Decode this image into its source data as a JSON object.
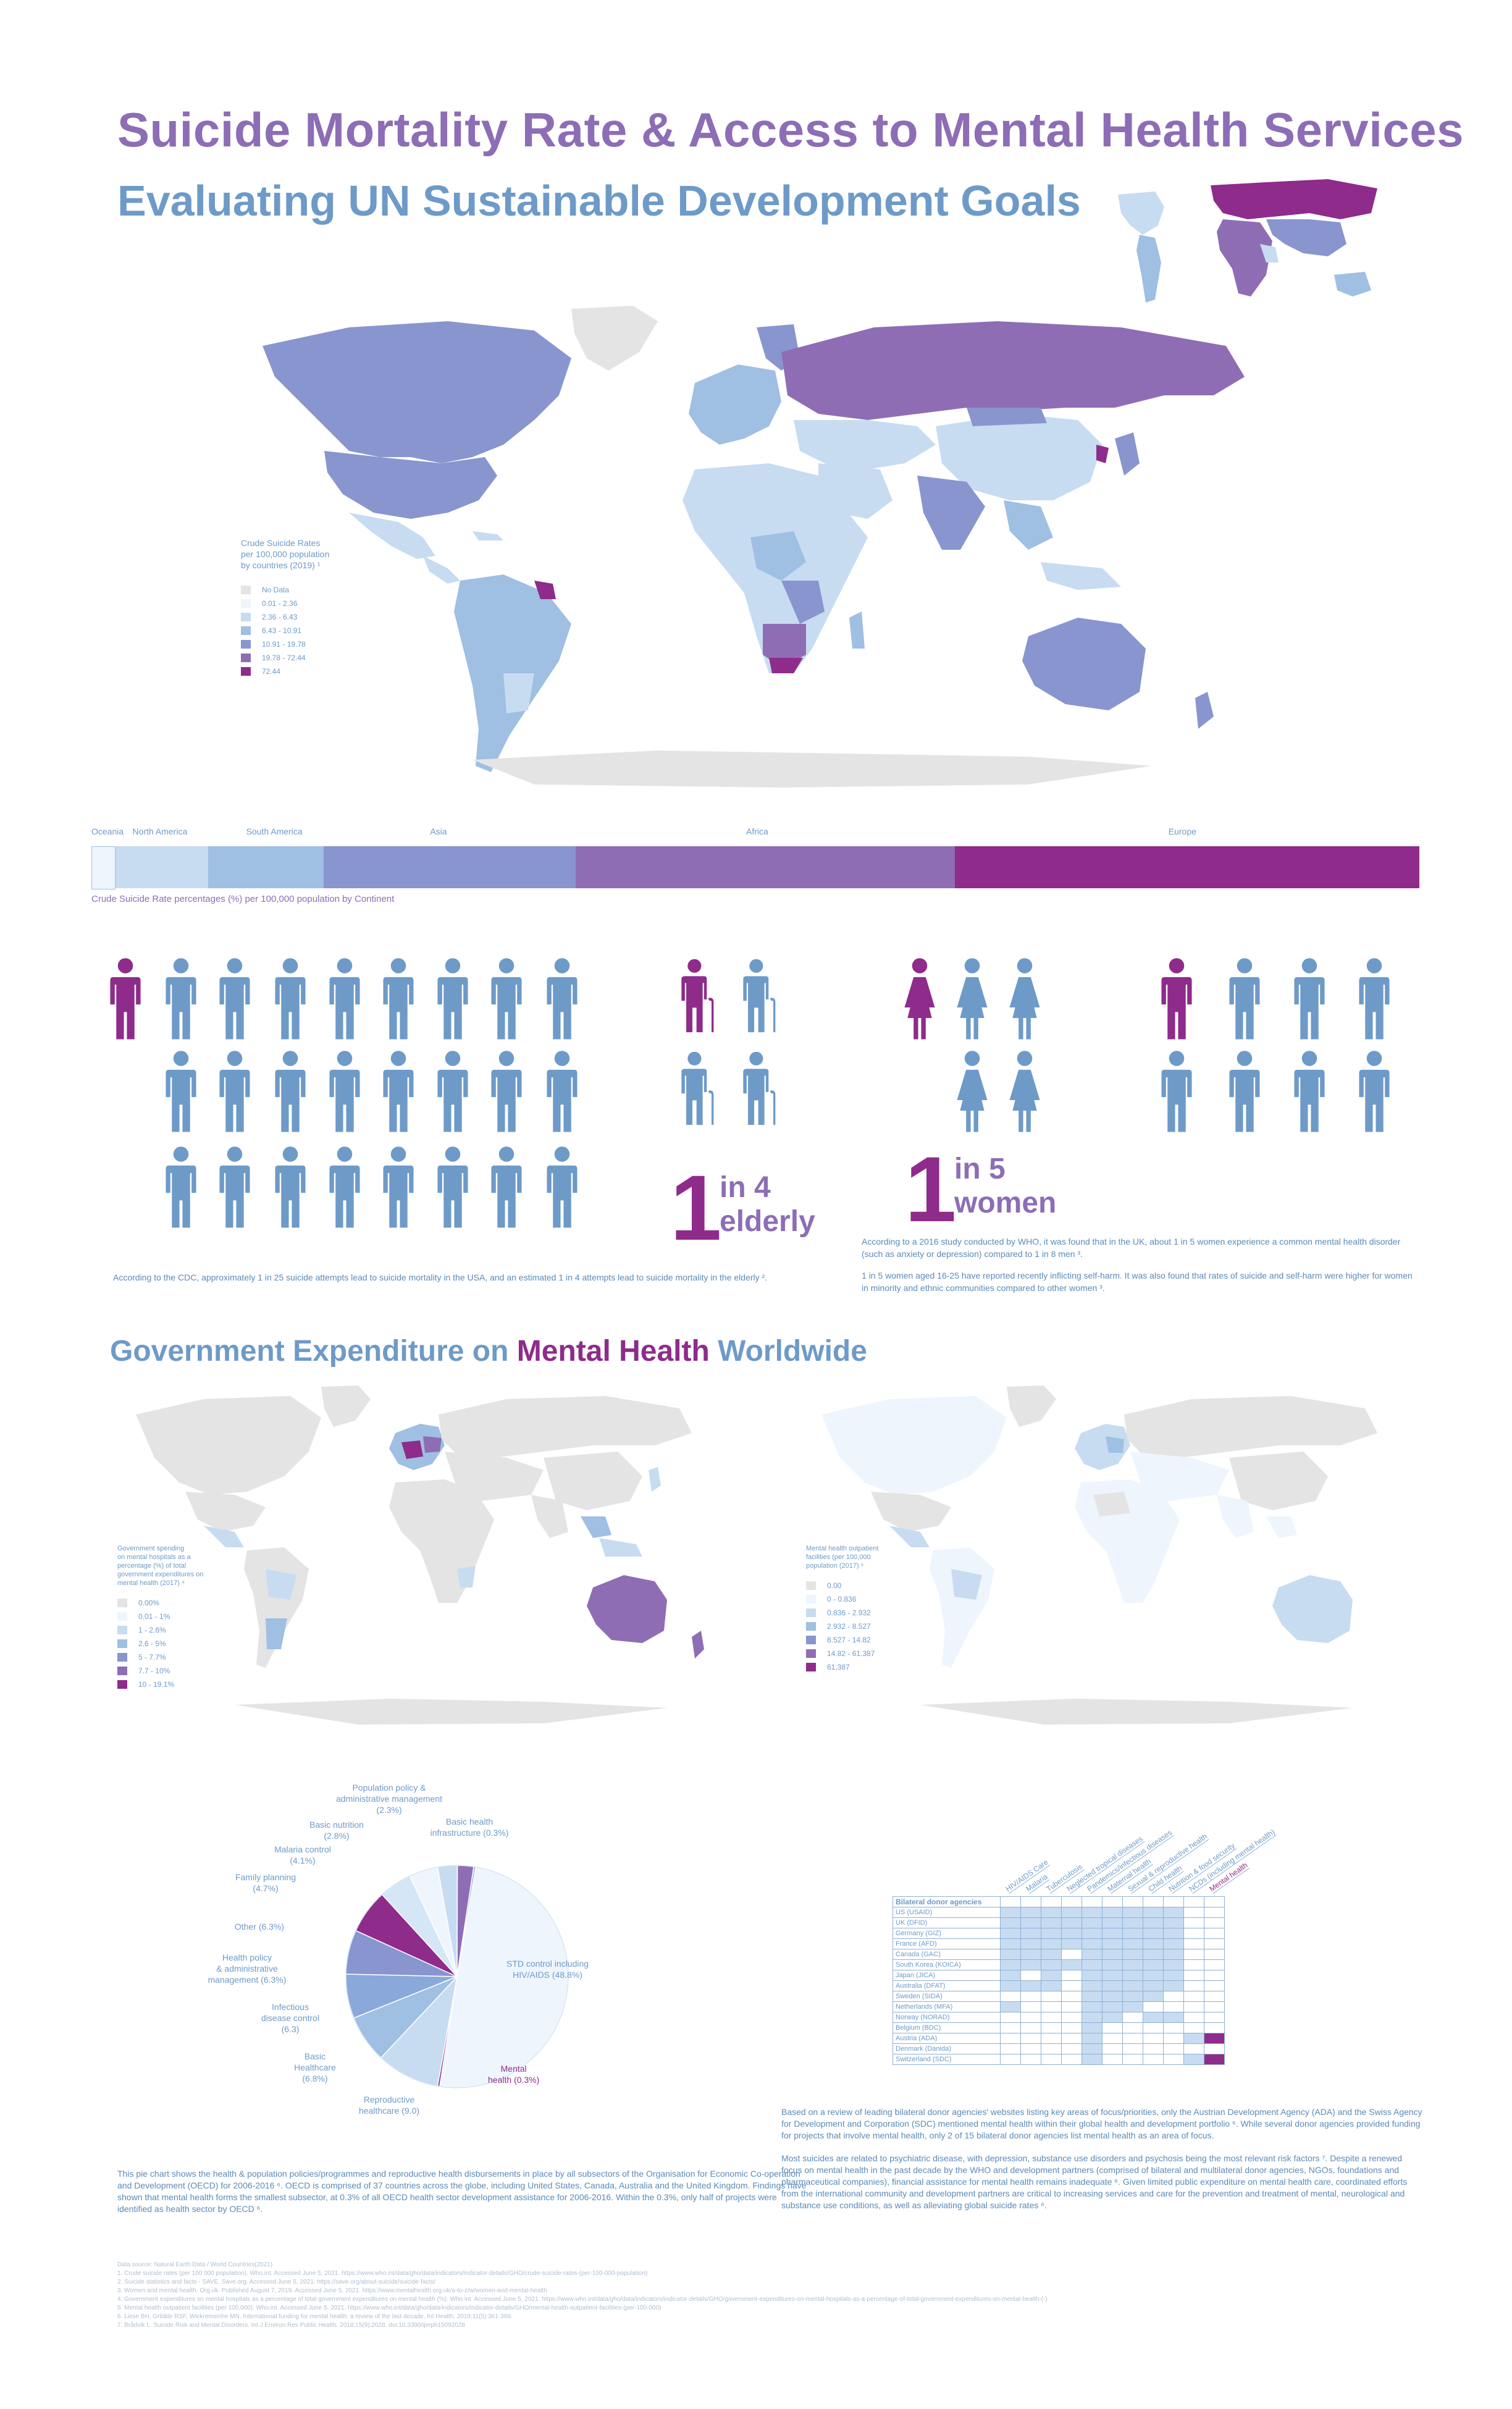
{
  "header": {
    "title": "Suicide Mortality Rate & Access to Mental Health Services",
    "subtitle": "Evaluating UN Sustainable Development Goals"
  },
  "map1_legend": {
    "title_line1": "Crude Suicide Rates",
    "title_line2": "per 100,000 population",
    "title_line3": "by countries (2019) ¹",
    "items": [
      {
        "label": "No Data",
        "color": "#e4e4e4"
      },
      {
        "label": "0.01 - 2.36",
        "color": "#eef5fc"
      },
      {
        "label": "2.36 - 6.43",
        "color": "#c7dcf1"
      },
      {
        "label": "6.43 - 10.91",
        "color": "#9fbfe3"
      },
      {
        "label": "10.91 - 19.78",
        "color": "#8895cf"
      },
      {
        "label": "19.78 - 72.44",
        "color": "#8f6db5"
      },
      {
        "label": "72.44",
        "color": "#8e2b8b"
      }
    ]
  },
  "continent_bar": {
    "caption": "Crude Suicide Rate percentages (%) per 100,000 population by Continent",
    "segments": [
      {
        "label": "Oceania",
        "share": 1.7,
        "color": "#eef5fc"
      },
      {
        "label": "North America",
        "share": 7.0,
        "color": "#c7dcf1"
      },
      {
        "label": "South America",
        "share": 8.7,
        "color": "#9fbfe3"
      },
      {
        "label": "Asia",
        "share": 19.0,
        "color": "#8895cf"
      },
      {
        "label": "Africa",
        "share": 28.6,
        "color": "#8f6db5"
      },
      {
        "label": "Europe",
        "share": 35.0,
        "color": "#8e2b8b"
      }
    ]
  },
  "stats": {
    "elderly_number": "1",
    "elderly_line1": "in 4",
    "elderly_line2": "elderly",
    "women_number": "1",
    "women_line1": "in 5",
    "women_line2": "women",
    "cdc_note": "According to the CDC, approximately 1 in 25 suicide attempts lead to suicide mortality in the USA, and an estimated 1 in 4 attempts lead to suicide mortality in the elderly ².",
    "who_note1": "According to a 2016 study conducted by WHO, it was found that in the UK, about 1 in 5 women experience a common mental health disorder (such as anxiety or depression) compared to 1 in 8 men ³.",
    "who_note2": "1 in 5 women aged 16-25 have reported recently inflicting self-harm. It was also found that rates of suicide and self-harm were higher for women in minority and ethnic communities compared to other women ³."
  },
  "section2": {
    "title_pre": "Government Expenditure on ",
    "title_hl": "Mental Health",
    "title_post": " Worldwide"
  },
  "map2_legend": {
    "title_line1": "Government spending",
    "title_line2": "on mental hospitals as a",
    "title_line3": "percentage (%) of total",
    "title_line4": "government expenditures on",
    "title_line5": "mental health (2017) ⁴",
    "items": [
      {
        "label": "0.00%",
        "color": "#e4e4e4"
      },
      {
        "label": "0.01 - 1%",
        "color": "#eef5fc"
      },
      {
        "label": "1 - 2.6%",
        "color": "#c7dcf1"
      },
      {
        "label": "2.6 - 5%",
        "color": "#9fbfe3"
      },
      {
        "label": "5 - 7.7%",
        "color": "#8895cf"
      },
      {
        "label": "7.7 - 10%",
        "color": "#8f6db5"
      },
      {
        "label": "10 - 19.1%",
        "color": "#8e2b8b"
      }
    ]
  },
  "map3_legend": {
    "title_line1": "Mental health outpatient",
    "title_line2": "facilities (per 100,000",
    "title_line3": "population (2017) ⁵",
    "items": [
      {
        "label": "0.00",
        "color": "#e4e4e4"
      },
      {
        "label": "0 - 0.836",
        "color": "#eef5fc"
      },
      {
        "label": "0.836 - 2.932",
        "color": "#c7dcf1"
      },
      {
        "label": "2.932 - 8.527",
        "color": "#9fbfe3"
      },
      {
        "label": "8.527 - 14.82",
        "color": "#8895cf"
      },
      {
        "label": "14.82 - 61.387",
        "color": "#8f6db5"
      },
      {
        "label": "61.387",
        "color": "#8e2b8b"
      }
    ]
  },
  "pie": {
    "slices": [
      {
        "label": "STD control including HIV/AIDS (48.8%)",
        "value": 48.8,
        "color": "#eef5fc"
      },
      {
        "label": "Mental health (0.3%)",
        "value": 0.3,
        "color": "#8e2b8b"
      },
      {
        "label": "Reproductive healthcare (9.0)",
        "value": 9.0,
        "color": "#c7dcf1"
      },
      {
        "label": "Basic Healthcare (6.8%)",
        "value": 6.8,
        "color": "#9fbfe3"
      },
      {
        "label": "Infectious disease control (6.3)",
        "value": 6.3,
        "color": "#8aa9da"
      },
      {
        "label": "Health policy & administrative management (6.3%)",
        "value": 6.3,
        "color": "#8895cf"
      },
      {
        "label": "Other (6.3%)",
        "value": 6.3,
        "color": "#8e2b8b"
      },
      {
        "label": "Family planning (4.7%)",
        "value": 4.7,
        "color": "#d5e6f6"
      },
      {
        "label": "Malaria control (4.1%)",
        "value": 4.1,
        "color": "#eef5fc"
      },
      {
        "label": "Basic nutrition (2.8%)",
        "value": 2.8,
        "color": "#c7dcf1"
      },
      {
        "label": "Population policy & administrative management (2.3%)",
        "value": 2.3,
        "color": "#8f6db5"
      },
      {
        "label": "Basic health infrastructure (0.3%)",
        "value": 0.3,
        "color": "#9fbfe3"
      }
    ],
    "note": "This pie chart shows the health & population policies/programmes and reproductive health disbursements in place by all subsectors of the Organisation for Economic Co-operation and Development (OECD) for 2006-2016 ⁶. OECD is comprised of 37 countries across the globe, including United States, Canada, Australia and the United Kingdom. Findings have shown that mental health forms the smallest subsector, at 0.3% of all OECD health sector development assistance for 2006-2016. Within the 0.3%, only half of projects were identified as health sector by OECD ⁶."
  },
  "donor_table": {
    "header": "Bilateral donor agencies",
    "columns": [
      "HIV/AIDS Care",
      "Malaria",
      "Tuberculosis",
      "Neglected tropical diseases",
      "Pandemics/infectious diseases",
      "Maternal health",
      "Sexual & reproductive health",
      "Child health",
      "Nutrition & food security",
      "NCDs (including mental health)",
      "Mental health"
    ],
    "rows": [
      {
        "agency": "US (USAID)",
        "cells": [
          1,
          1,
          1,
          1,
          1,
          1,
          1,
          1,
          1,
          0,
          0
        ]
      },
      {
        "agency": "UK (DFID)",
        "cells": [
          1,
          1,
          1,
          1,
          1,
          1,
          1,
          1,
          1,
          0,
          0
        ]
      },
      {
        "agency": "Germany (GIZ)",
        "cells": [
          1,
          1,
          1,
          1,
          1,
          1,
          1,
          1,
          1,
          0,
          0
        ]
      },
      {
        "agency": "France (AFD)",
        "cells": [
          1,
          1,
          1,
          1,
          1,
          1,
          1,
          1,
          1,
          0,
          0
        ]
      },
      {
        "agency": "Canada (GAC)",
        "cells": [
          1,
          1,
          1,
          0,
          1,
          1,
          1,
          1,
          1,
          0,
          0
        ]
      },
      {
        "agency": "South Korea (KOICA)",
        "cells": [
          1,
          1,
          1,
          1,
          1,
          1,
          1,
          1,
          1,
          0,
          0
        ]
      },
      {
        "agency": "Japan (JICA)",
        "cells": [
          1,
          0,
          1,
          0,
          1,
          1,
          1,
          1,
          1,
          0,
          0
        ]
      },
      {
        "agency": "Australia (DFAT)",
        "cells": [
          1,
          1,
          1,
          0,
          1,
          1,
          1,
          1,
          1,
          0,
          0
        ]
      },
      {
        "agency": "Sweden (SIDA)",
        "cells": [
          0,
          0,
          0,
          0,
          1,
          1,
          1,
          1,
          0,
          0,
          0
        ]
      },
      {
        "agency": "Netherlands (MFA)",
        "cells": [
          1,
          0,
          0,
          0,
          1,
          1,
          1,
          0,
          0,
          0,
          0
        ]
      },
      {
        "agency": "Norway (NORAD)",
        "cells": [
          0,
          0,
          0,
          0,
          1,
          1,
          0,
          1,
          1,
          0,
          0
        ]
      },
      {
        "agency": "Belgium (BDC)",
        "cells": [
          0,
          0,
          0,
          0,
          1,
          0,
          0,
          0,
          0,
          0,
          0
        ]
      },
      {
        "agency": "Austria (ADA)",
        "cells": [
          0,
          0,
          0,
          0,
          1,
          0,
          0,
          0,
          0,
          1,
          2
        ]
      },
      {
        "agency": "Denmark (Danida)",
        "cells": [
          0,
          0,
          0,
          0,
          1,
          0,
          0,
          0,
          0,
          0,
          0
        ]
      },
      {
        "agency": "Switzerland (SDC)",
        "cells": [
          0,
          0,
          0,
          0,
          1,
          0,
          0,
          0,
          0,
          1,
          2
        ]
      }
    ],
    "para1": "Based on a review of leading bilateral donor agencies' websites listing key areas of focus/priorities, only the Austrian Development Agency (ADA) and the Swiss Agency for Development and Corporation (SDC) mentioned mental health within their global health and development portfolio ⁶. While several donor agencies provided funding for projects that involve mental health, only 2 of 15 bilateral donor agencies list mental health as an area of focus.",
    "para2": "Most suicides are related to psychiatric disease, with depression, substance use disorders and psychosis being the most relevant risk factors ⁷. Despite a renewed focus on mental health in the past decade by the WHO and development partners (comprised of bilateral and multilateral donor agencies, NGOs, foundations and pharmaceutical companies), financial assistance for mental health remains inadequate ⁶. Given limited public expenditure on mental health care, coordinated efforts from the international community and development partners are critical to increasing services and care for the prevention and treatment of mental, neurological and substance use conditions, as well as alleviating global suicide rates ⁶."
  },
  "sources": [
    "Data source: Natural Earth Data / World Countries(2021)",
    "1. Crude suicide rates (per 100 000 population). Who.int. Accessed June 5, 2021. https://www.who.int/data/gho/data/indicators/indicator-details/GHO/crude-suicide-rates-(per-100-000-population)",
    "2. Suicide statistics and facts - SAVE. Save.org. Accessed June 5, 2021. https://save.org/about-suicide/suicide-facts/",
    "3. Women and mental health. Org.uk. Published August 7, 2019. Accessed June 5, 2021. https://www.mentalhealth.org.uk/a-to-z/w/women-and-mental-health",
    "4. Government expenditures on mental hospitals as a percentage of total government expenditures on mental health (%). Who.int. Accessed June 5, 2021. https://www.who.int/data/gho/data/indicators/indicator-details/GHO/government-expenditures-on-mental-hospitals-as-a-percentage-of-total-government-expenditures-on-mental-health-(-)",
    "5. Mental health outpatient facilities (per 100,000). Who.int. Accessed June 5, 2021. https://www.who.int/data/gho/data/indicators/indicator-details/GHO/mental-health-outpatient-facilities-(per-100-000)",
    "6. Liese BH, Gribble RSF, Wickremsinhe MN. International funding for mental health: a review of the last decade. Int Health. 2019;11(5):361-369.",
    "7. Brådvik L. Suicide Risk and Mental Disorders. Int J Environ Res Public Health. 2018;15(9):2028. doi:10.3390/ijerph15092028"
  ]
}
